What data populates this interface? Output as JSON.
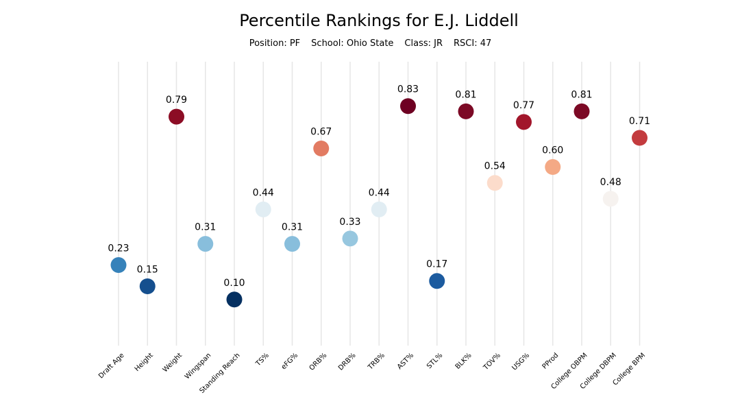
{
  "header": {
    "title": "Percentile Rankings for E.J. Liddell",
    "position": "Position: PF",
    "school": "School: Ohio State",
    "class": "Class: JR",
    "rsci": "RSCI: 47"
  },
  "chart_data": {
    "type": "scatter",
    "title": "Percentile Rankings for E.J. Liddell",
    "xlabel": "",
    "ylabel": "",
    "ylim": [
      -0.1,
      1.0
    ],
    "grid": "vertical lines at each category",
    "legend": "none",
    "colormap": "RdBu_r",
    "categories": [
      "Draft Age",
      "Height",
      "Weight",
      "Wingspan",
      "Standing Reach",
      "TS%",
      "eFG%",
      "ORB%",
      "DRB%",
      "TRB%",
      "AST%",
      "STL%",
      "BLK%",
      "TOV%",
      "USG%",
      "PProd",
      "College OBPM",
      "College DBPM",
      "College BPM"
    ],
    "values": [
      0.23,
      0.15,
      0.79,
      0.31,
      0.1,
      0.44,
      0.31,
      0.67,
      0.33,
      0.44,
      0.83,
      0.17,
      0.81,
      0.54,
      0.77,
      0.6,
      0.81,
      0.48,
      0.71
    ],
    "labels": [
      "0.23",
      "0.15",
      "0.79",
      "0.31",
      "0.10",
      "0.44",
      "0.31",
      "0.67",
      "0.33",
      "0.44",
      "0.83",
      "0.17",
      "0.81",
      "0.54",
      "0.77",
      "0.60",
      "0.81",
      "0.48",
      "0.71"
    ],
    "colors": [
      "#3682ba",
      "#154f8e",
      "#8c0d25",
      "#88bedc",
      "#053061",
      "#e1edf3",
      "#88bedc",
      "#e27b62",
      "#97c7df",
      "#e1edf3",
      "#6e0022",
      "#1c5b9f",
      "#7c0925",
      "#fcdccb",
      "#a2162b",
      "#f4a985",
      "#7c0925",
      "#f6f2ef",
      "#c33b3e"
    ]
  }
}
